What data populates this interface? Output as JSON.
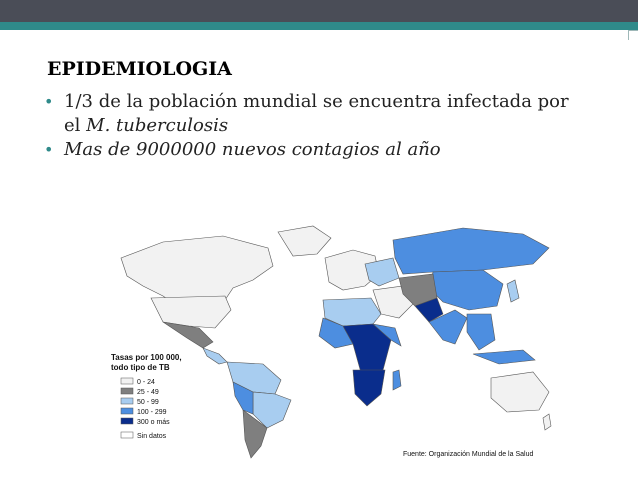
{
  "slide": {
    "title": "EPIDEMIOLOGIA",
    "bullet1_part1": "1/3 de la población mundial se encuentra infectada por el ",
    "bullet1_italic": "M. tuberculosis",
    "bullet2": "Mas de 9000000 nuevos contagios al año"
  },
  "map": {
    "legend_title_1": "Tasas por 100 000,",
    "legend_title_2": "todo tipo de TB",
    "legend_items": [
      {
        "label": "0 - 24",
        "color": "#f2f2f2"
      },
      {
        "label": "25 - 49",
        "color": "#7f7f7f"
      },
      {
        "label": "50 - 99",
        "color": "#a8cdf0"
      },
      {
        "label": "100 - 299",
        "color": "#4d8ee0"
      },
      {
        "label": "300 o más",
        "color": "#0a2d8c"
      },
      {
        "label": "Sin datos",
        "color": "#ffffff"
      }
    ],
    "source": "Fuente: Organización Mundial de la Salud"
  },
  "colors": {
    "header": "#4a4d57",
    "accent": "#2f8a8a"
  }
}
